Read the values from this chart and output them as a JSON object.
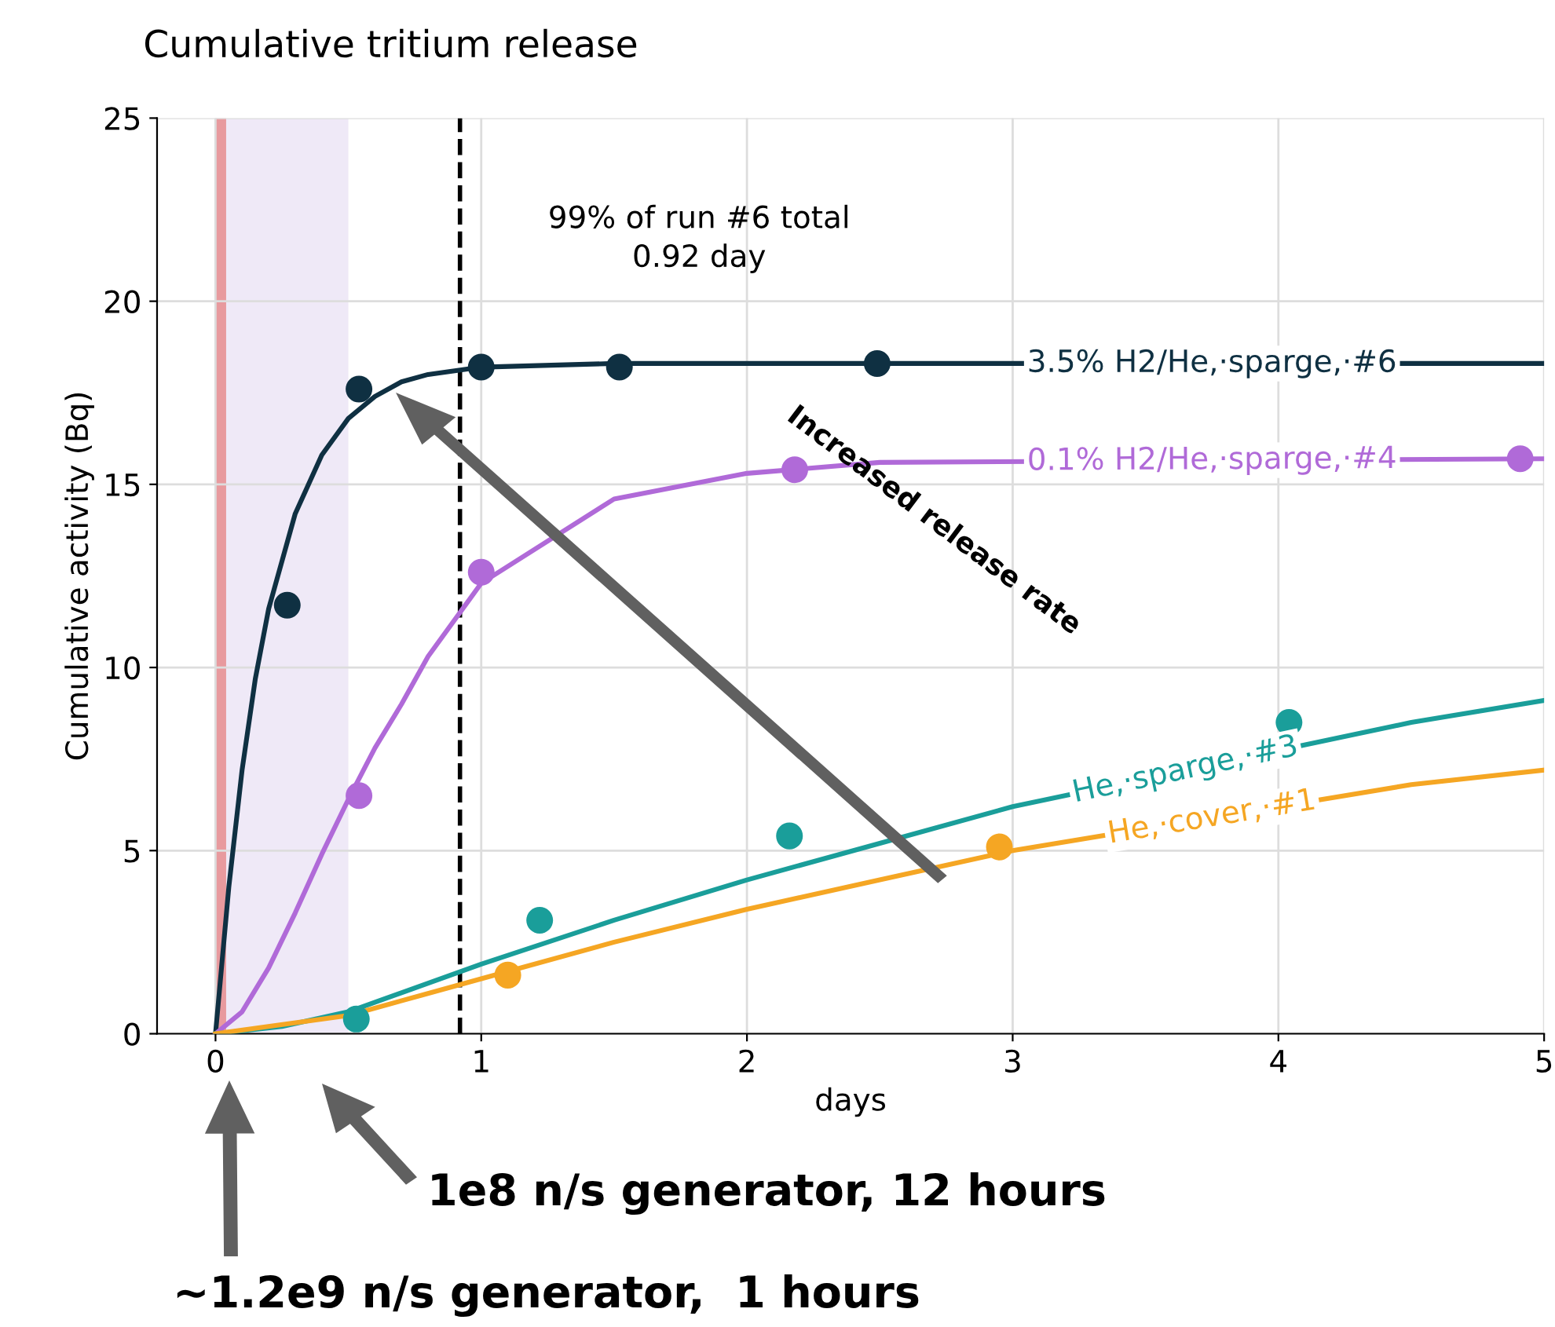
{
  "chart_data": {
    "type": "line",
    "title": "Cumulative tritium release",
    "xlabel": "days",
    "ylabel": "Cumulative activity (Bq)",
    "xlim": [
      -0.22,
      5
    ],
    "ylim": [
      0,
      25
    ],
    "xticks": [
      0,
      1,
      2,
      3,
      4,
      5
    ],
    "yticks": [
      0,
      5,
      10,
      15,
      20,
      25
    ],
    "grid": true,
    "legend": false,
    "series": [
      {
        "name": "3.5% H2/He,·sparge,·#6",
        "color": "#0f3042",
        "marker": "none",
        "x": [
          0,
          0.05,
          0.1,
          0.15,
          0.2,
          0.3,
          0.4,
          0.5,
          0.6,
          0.7,
          0.8,
          1.0,
          1.5,
          2.5,
          5
        ],
        "values": [
          0,
          4.0,
          7.2,
          9.7,
          11.6,
          14.2,
          15.8,
          16.8,
          17.4,
          17.8,
          18.0,
          18.2,
          18.3,
          18.3,
          18.3
        ]
      },
      {
        "type": "scatter",
        "color": "#0f3042",
        "marker": "circle",
        "x": [
          0.27,
          0.54,
          1.0,
          1.52,
          2.49
        ],
        "values": [
          11.7,
          17.6,
          18.2,
          18.2,
          18.3
        ]
      },
      {
        "name": "0.1% H2/He,·sparge,·#4",
        "color": "#b06ad8",
        "marker": "none",
        "x": [
          0,
          0.1,
          0.2,
          0.3,
          0.4,
          0.5,
          0.6,
          0.7,
          0.8,
          1.0,
          1.5,
          2.0,
          2.5,
          5
        ],
        "values": [
          0,
          0.6,
          1.8,
          3.3,
          4.9,
          6.4,
          7.8,
          9.0,
          10.3,
          12.3,
          14.6,
          15.3,
          15.6,
          15.7
        ]
      },
      {
        "type": "scatter",
        "color": "#b06ad8",
        "marker": "circle",
        "x": [
          0.54,
          1.0,
          2.18,
          4.91
        ],
        "values": [
          6.5,
          12.6,
          15.4,
          15.7
        ]
      },
      {
        "name": "He,·sparge,·#3",
        "color": "#1a9e9a",
        "marker": "none",
        "x": [
          0,
          0.25,
          0.5,
          1,
          1.5,
          2,
          2.5,
          3,
          4.5,
          5
        ],
        "values": [
          0,
          0.2,
          0.6,
          1.9,
          3.1,
          4.2,
          5.2,
          6.2,
          8.5,
          9.1
        ]
      },
      {
        "type": "scatter",
        "color": "#1a9e9a",
        "marker": "circle",
        "x": [
          0.53,
          1.22,
          2.16,
          4.04
        ],
        "values": [
          0.4,
          3.1,
          5.4,
          8.5
        ]
      },
      {
        "name": "He,·cover,·#1",
        "color": "#f5a623",
        "marker": "none",
        "x": [
          0,
          0.5,
          1,
          1.5,
          2,
          2.5,
          3,
          4.5,
          5
        ],
        "values": [
          0,
          0.5,
          1.5,
          2.5,
          3.4,
          4.2,
          5.0,
          6.8,
          7.2
        ]
      },
      {
        "type": "scatter",
        "color": "#f5a623",
        "marker": "circle",
        "x": [
          1.1,
          2.95
        ],
        "values": [
          1.6,
          5.1
        ]
      }
    ],
    "bands": [
      {
        "axis": "x",
        "from": 0,
        "to": 0.5,
        "color": "#efe9f7"
      },
      {
        "axis": "x",
        "from": 0,
        "to": 0.04,
        "color": "#e89a9e"
      }
    ],
    "ref_lines": [
      {
        "axis": "x",
        "value": 0.92,
        "label": "99% of run #6 total\n0.92 day",
        "color": "#000000",
        "line_style": "dashed"
      }
    ],
    "annotations": [
      "Increased release rate",
      "1e8 n/s generator, 12 hours",
      "~1.2e9 n/s generator,  1 hours"
    ]
  }
}
